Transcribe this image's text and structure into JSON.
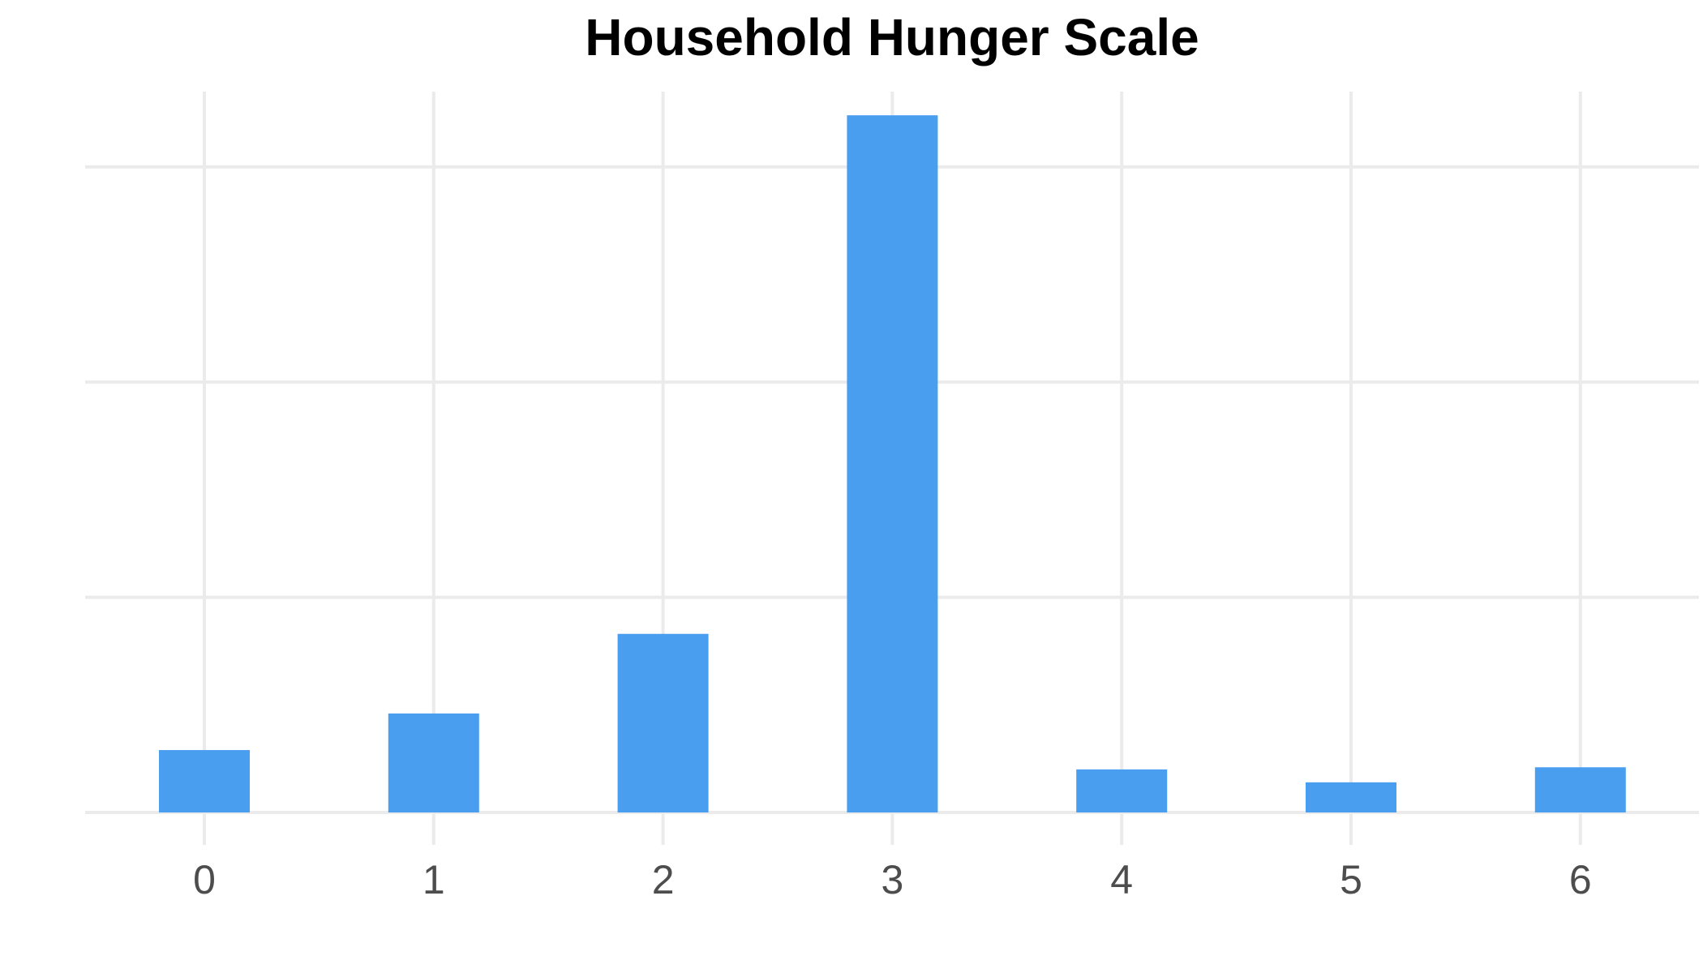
{
  "chart_data": {
    "type": "bar",
    "title": "Household Hunger Scale",
    "xlabel": "",
    "ylabel": "",
    "categories": [
      "0",
      "1",
      "2",
      "3",
      "4",
      "5",
      "6"
    ],
    "values": [
      29,
      46,
      83,
      324,
      20,
      14,
      21
    ],
    "ylim": [
      0,
      335
    ],
    "y_gridlines": [
      0,
      100,
      200,
      300
    ],
    "y_tick_labels_shown": false,
    "grid": true,
    "legend": "none",
    "colors": {
      "bar": "#4a9ef0",
      "grid": "#ebebeb",
      "title": "#000000",
      "tick_label": "#4d4d4d"
    }
  }
}
